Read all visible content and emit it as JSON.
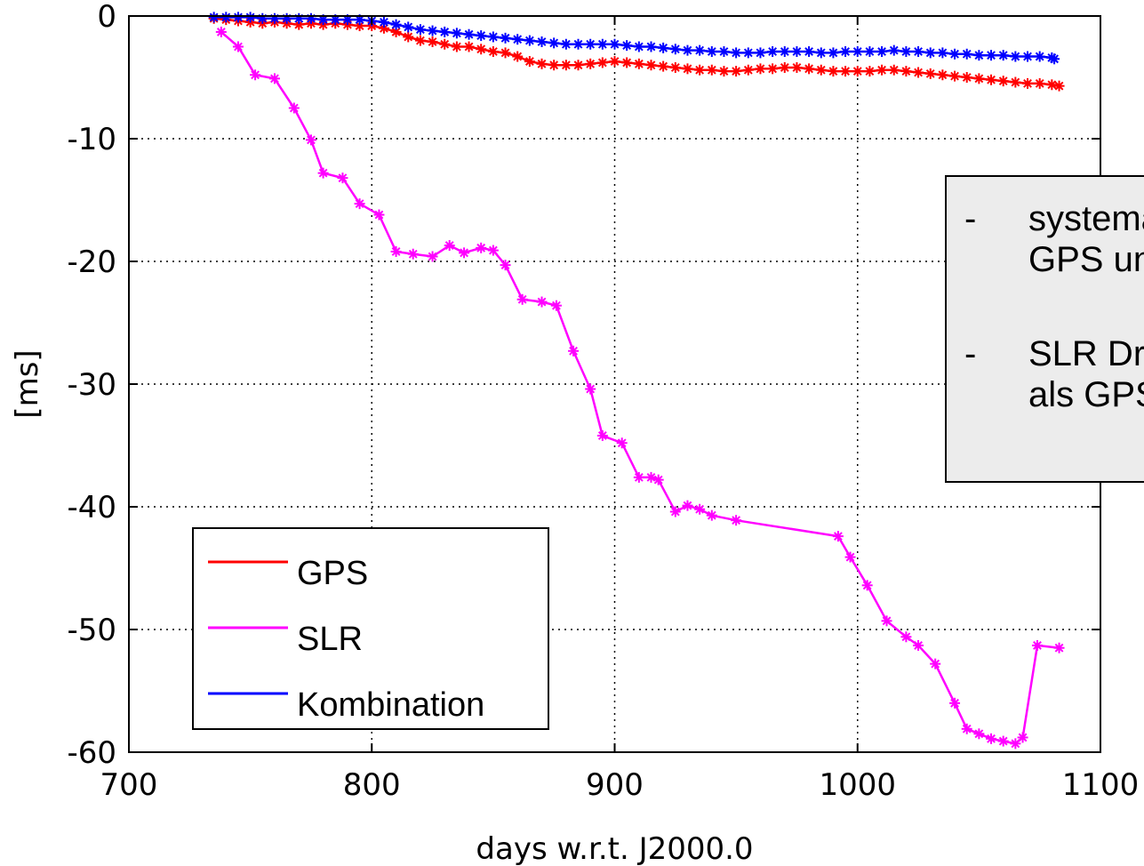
{
  "chart_data": {
    "type": "line",
    "title": "",
    "xlabel": "days w.r.t. J2000.0",
    "ylabel": "[ms]",
    "xlim": [
      700,
      1100
    ],
    "ylim": [
      -60,
      0
    ],
    "xticks": [
      700,
      800,
      900,
      1000,
      1100
    ],
    "yticks": [
      0,
      -10,
      -20,
      -30,
      -40,
      -50,
      -60
    ],
    "grid": true,
    "legend_position": "bottom-left",
    "series": [
      {
        "name": "GPS",
        "color": "#ff0000",
        "marker": "asterisk",
        "x": [
          735,
          740,
          745,
          750,
          755,
          760,
          765,
          770,
          775,
          780,
          785,
          790,
          795,
          800,
          805,
          810,
          815,
          820,
          825,
          830,
          835,
          840,
          845,
          850,
          855,
          860,
          865,
          870,
          875,
          880,
          885,
          890,
          895,
          900,
          905,
          910,
          915,
          920,
          925,
          930,
          935,
          940,
          945,
          950,
          955,
          960,
          965,
          970,
          975,
          980,
          985,
          990,
          995,
          1000,
          1005,
          1010,
          1015,
          1020,
          1025,
          1030,
          1035,
          1040,
          1045,
          1050,
          1055,
          1060,
          1065,
          1070,
          1075,
          1080,
          1083
        ],
        "y": [
          -0.2,
          -0.3,
          -0.4,
          -0.5,
          -0.6,
          -0.5,
          -0.6,
          -0.7,
          -0.6,
          -0.7,
          -0.6,
          -0.7,
          -0.8,
          -0.8,
          -1.0,
          -1.3,
          -1.7,
          -2.0,
          -2.1,
          -2.3,
          -2.5,
          -2.5,
          -2.7,
          -2.9,
          -3.0,
          -3.3,
          -3.7,
          -3.9,
          -4.0,
          -4.0,
          -4.0,
          -3.9,
          -3.8,
          -3.7,
          -3.8,
          -3.9,
          -4.0,
          -4.1,
          -4.2,
          -4.3,
          -4.4,
          -4.4,
          -4.5,
          -4.5,
          -4.4,
          -4.3,
          -4.3,
          -4.2,
          -4.2,
          -4.3,
          -4.4,
          -4.5,
          -4.5,
          -4.5,
          -4.5,
          -4.4,
          -4.4,
          -4.5,
          -4.6,
          -4.7,
          -4.8,
          -4.9,
          -5.0,
          -5.1,
          -5.2,
          -5.3,
          -5.4,
          -5.5,
          -5.5,
          -5.6,
          -5.7
        ]
      },
      {
        "name": "SLR",
        "color": "#ff00ff",
        "marker": "asterisk",
        "x": [
          738,
          745,
          752,
          760,
          768,
          775,
          780,
          788,
          795,
          803,
          810,
          817,
          825,
          832,
          838,
          845,
          850,
          855,
          862,
          870,
          876,
          883,
          890,
          895,
          903,
          910,
          915,
          918,
          925,
          930,
          935,
          940,
          950,
          992,
          997,
          1004,
          1012,
          1020,
          1025,
          1032,
          1040,
          1045,
          1050,
          1055,
          1060,
          1065,
          1068,
          1074,
          1083
        ],
        "y": [
          -1.3,
          -2.5,
          -4.8,
          -5.1,
          -7.5,
          -10.1,
          -12.8,
          -13.2,
          -15.3,
          -16.2,
          -19.2,
          -19.4,
          -19.6,
          -18.7,
          -19.3,
          -18.9,
          -19.1,
          -20.3,
          -23.1,
          -23.3,
          -23.6,
          -27.3,
          -30.4,
          -34.2,
          -34.8,
          -37.6,
          -37.6,
          -37.8,
          -40.4,
          -39.9,
          -40.2,
          -40.7,
          -41.1,
          -42.4,
          -44.1,
          -46.4,
          -49.3,
          -50.6,
          -51.3,
          -52.8,
          -56.0,
          -58.1,
          -58.5,
          -58.9,
          -59.1,
          -59.3,
          -58.8,
          -51.3,
          -51.5
        ]
      },
      {
        "name": "Kombination",
        "color": "#0000ff",
        "marker": "asterisk",
        "x": [
          735,
          740,
          745,
          750,
          755,
          760,
          765,
          770,
          775,
          780,
          785,
          790,
          795,
          800,
          805,
          810,
          815,
          820,
          825,
          830,
          835,
          840,
          845,
          850,
          855,
          860,
          865,
          870,
          875,
          880,
          885,
          890,
          895,
          900,
          905,
          910,
          915,
          920,
          925,
          930,
          935,
          940,
          945,
          950,
          955,
          960,
          965,
          970,
          975,
          980,
          985,
          990,
          995,
          1000,
          1005,
          1010,
          1015,
          1020,
          1025,
          1030,
          1035,
          1040,
          1045,
          1050,
          1055,
          1060,
          1065,
          1070,
          1075,
          1080,
          1081
        ],
        "y": [
          -0.1,
          -0.1,
          -0.1,
          -0.1,
          -0.2,
          -0.2,
          -0.2,
          -0.2,
          -0.2,
          -0.3,
          -0.3,
          -0.3,
          -0.3,
          -0.4,
          -0.5,
          -0.7,
          -0.9,
          -1.1,
          -1.2,
          -1.3,
          -1.4,
          -1.5,
          -1.6,
          -1.7,
          -1.8,
          -1.9,
          -2.0,
          -2.1,
          -2.2,
          -2.3,
          -2.3,
          -2.3,
          -2.3,
          -2.3,
          -2.4,
          -2.5,
          -2.5,
          -2.6,
          -2.7,
          -2.8,
          -2.8,
          -2.9,
          -2.9,
          -3.0,
          -3.0,
          -3.0,
          -2.9,
          -2.9,
          -2.9,
          -2.9,
          -3.0,
          -3.0,
          -2.9,
          -2.9,
          -2.9,
          -2.9,
          -2.8,
          -2.9,
          -2.9,
          -3.0,
          -3.0,
          -3.1,
          -3.1,
          -3.2,
          -3.2,
          -3.2,
          -3.3,
          -3.3,
          -3.3,
          -3.4,
          -3.5
        ]
      }
    ]
  },
  "notes": [
    {
      "dash": "-",
      "lines": [
        "systematische Drift in",
        "GPS und Kombination"
      ]
    },
    {
      "dash": "-",
      "lines": [
        "SLR Drift deutlich größer",
        "als GPS"
      ]
    }
  ]
}
